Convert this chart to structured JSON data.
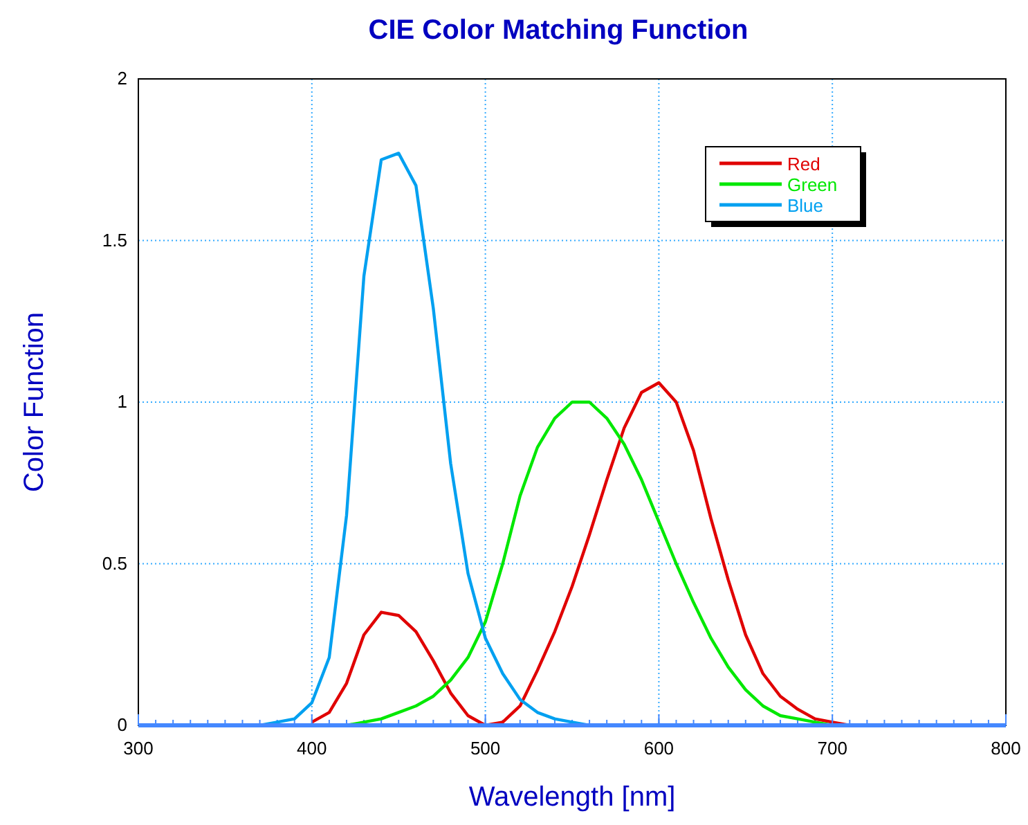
{
  "chart_data": {
    "type": "line",
    "title": "CIE Color Matching Function",
    "xlabel": "Wavelength [nm]",
    "ylabel": "Color Function",
    "xlim": [
      300,
      800
    ],
    "xticks": [
      300,
      400,
      500,
      600,
      700,
      800
    ],
    "ylim": [
      0,
      2
    ],
    "yticks": [
      0,
      0.5,
      1,
      1.5,
      2
    ],
    "grid": true,
    "legend": "top right",
    "marker": "none",
    "line_style": "solid",
    "series": [
      {
        "name": "Red",
        "color": "#e00000",
        "x": [
          400,
          410,
          420,
          430,
          440,
          450,
          460,
          470,
          480,
          490,
          500,
          510,
          520,
          530,
          540,
          550,
          560,
          570,
          580,
          590,
          600,
          610,
          620,
          630,
          640,
          650,
          660,
          670,
          680,
          690,
          700,
          710
        ],
        "values": [
          0.01,
          0.04,
          0.13,
          0.28,
          0.35,
          0.34,
          0.29,
          0.2,
          0.1,
          0.03,
          0.0,
          0.01,
          0.06,
          0.17,
          0.29,
          0.43,
          0.59,
          0.76,
          0.92,
          1.03,
          1.06,
          1.0,
          0.85,
          0.64,
          0.45,
          0.28,
          0.16,
          0.09,
          0.05,
          0.02,
          0.01,
          0.0
        ]
      },
      {
        "name": "Green",
        "color": "#00e800",
        "x": [
          420,
          430,
          440,
          450,
          460,
          470,
          480,
          490,
          500,
          510,
          520,
          530,
          540,
          550,
          560,
          570,
          580,
          590,
          600,
          610,
          620,
          630,
          640,
          650,
          660,
          670,
          680,
          690,
          700
        ],
        "values": [
          0.0,
          0.01,
          0.02,
          0.04,
          0.06,
          0.09,
          0.14,
          0.21,
          0.32,
          0.5,
          0.71,
          0.86,
          0.95,
          1.0,
          1.0,
          0.95,
          0.87,
          0.76,
          0.63,
          0.5,
          0.38,
          0.27,
          0.18,
          0.11,
          0.06,
          0.03,
          0.02,
          0.01,
          0.0
        ]
      },
      {
        "name": "Blue",
        "color": "#00a0f0",
        "x": [
          370,
          380,
          390,
          400,
          410,
          420,
          430,
          440,
          450,
          460,
          470,
          480,
          490,
          500,
          510,
          520,
          530,
          540,
          550,
          560
        ],
        "values": [
          0.0,
          0.01,
          0.02,
          0.07,
          0.21,
          0.65,
          1.39,
          1.75,
          1.77,
          1.67,
          1.29,
          0.81,
          0.47,
          0.27,
          0.16,
          0.08,
          0.04,
          0.02,
          0.01,
          0.0
        ]
      }
    ]
  }
}
